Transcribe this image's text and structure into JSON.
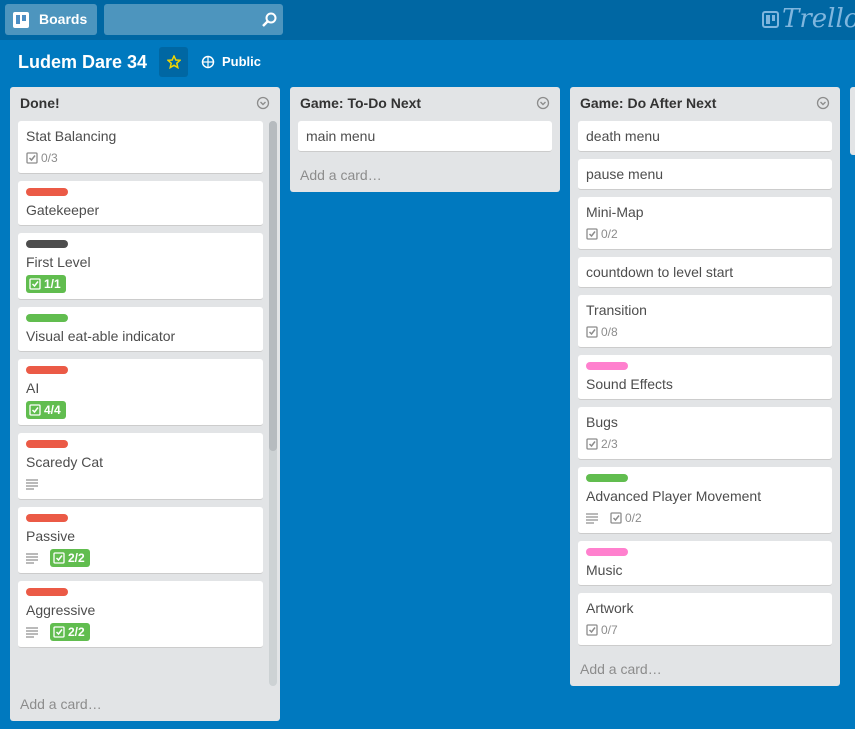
{
  "header": {
    "boards_button": "Boards",
    "logo": "Trello"
  },
  "board": {
    "title": "Ludem Dare 34",
    "visibility": "Public"
  },
  "lists": [
    {
      "title": "Done!",
      "add_card": "Add a card…",
      "cards": [
        {
          "title": "Stat Balancing",
          "checklist": "0/3"
        },
        {
          "label": "#eb5a46",
          "title": "Gatekeeper"
        },
        {
          "label": "#4d4d4d",
          "title": "First Level",
          "checklist": "1/1",
          "complete": true
        },
        {
          "label": "#61bd4f",
          "title": "Visual eat-able indicator"
        },
        {
          "label": "#eb5a46",
          "title": "AI",
          "checklist": "4/4",
          "complete": true
        },
        {
          "label": "#eb5a46",
          "title": "Scaredy Cat",
          "description": true
        },
        {
          "label": "#eb5a46",
          "title": "Passive",
          "description": true,
          "checklist": "2/2",
          "complete": true
        },
        {
          "label": "#eb5a46",
          "title": "Aggressive",
          "description": true,
          "checklist": "2/2",
          "complete": true
        }
      ]
    },
    {
      "title": "Game: To-Do Next",
      "add_card": "Add a card…",
      "cards": [
        {
          "title": "main menu"
        }
      ]
    },
    {
      "title": "Game: Do After Next",
      "add_card": "Add a card…",
      "cards": [
        {
          "title": "death menu"
        },
        {
          "title": "pause menu"
        },
        {
          "title": "Mini-Map",
          "checklist": "0/2"
        },
        {
          "title": "countdown to level start"
        },
        {
          "title": "Transition",
          "checklist": "0/8"
        },
        {
          "label": "#ff80ce",
          "title": "Sound Effects"
        },
        {
          "title": "Bugs",
          "checklist": "2/3"
        },
        {
          "label": "#61bd4f",
          "title": "Advanced Player Movement",
          "description": true,
          "checklist": "0/2"
        },
        {
          "label": "#ff80ce",
          "title": "Music"
        },
        {
          "title": "Artwork",
          "checklist": "0/7"
        }
      ]
    }
  ]
}
